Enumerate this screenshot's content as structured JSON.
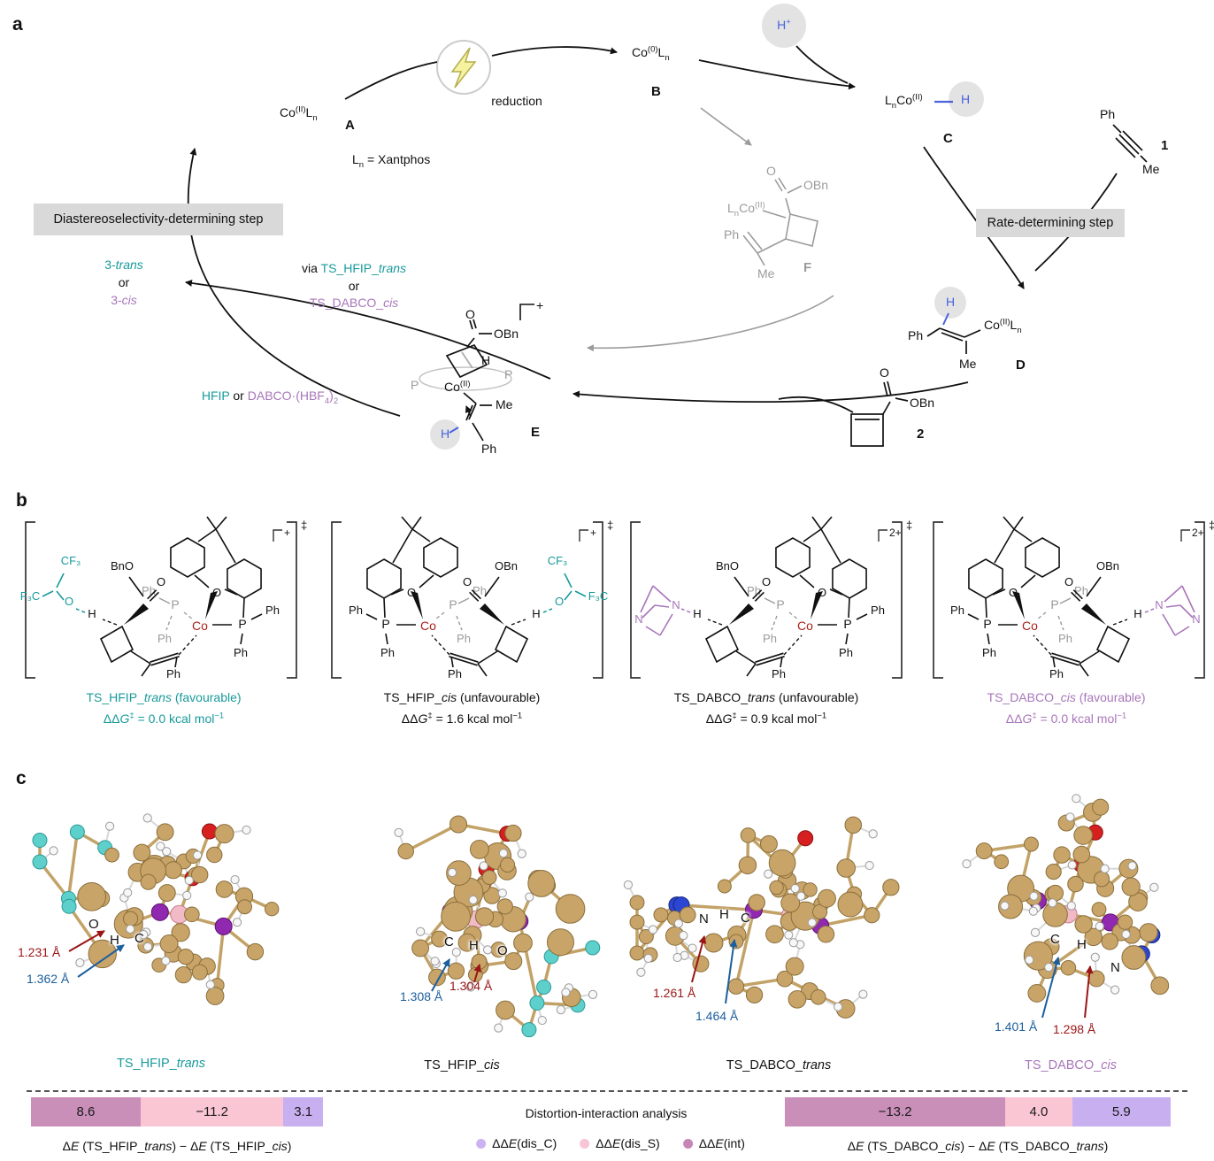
{
  "colors": {
    "teal": "#199a9b",
    "purple": "#a876ba",
    "blue_h": "#4a63e0",
    "dark_red_annotation": "#9a1515",
    "blue_annotation": "#1b5f9e",
    "co_red": "#a82019",
    "gray_structure": "#9b9b9b",
    "box_gray": "#d9d9d9",
    "bar_mauve": "#c98fb9",
    "bar_pink": "#fac6d4",
    "bar_lavender": "#c8aff0",
    "atom_carbon": "#c9a468",
    "atom_hydrogen": "#f7f7f7",
    "atom_oxygen": "#d62020",
    "atom_fluorine": "#5ed0cc",
    "atom_nitrogen": "#2c46d4",
    "atom_phosphorus": "#9028b0",
    "atom_cobalt": "#f2bac6"
  },
  "panel_a": {
    "label": "a",
    "species_a": "Co<sup>(II)</sup>L<sub>n</sub>",
    "tag_a": "A",
    "ligand_note": "L<sub>n</sub> = Xantphos",
    "reduction": "reduction",
    "species_b": "Co<sup>(0)</sup>L<sub>n</sub>",
    "tag_b": "B",
    "proton": "H<sup>+</sup>",
    "species_c": "L<sub>n</sub>Co<sup>(II)</sup>",
    "hydride": "H",
    "tag_c": "C",
    "diastereo_box": "Diastereoselectivity-determining step",
    "rate_box": "Rate-determining step",
    "product_trans": "3-<i>trans</i>",
    "product_or": "or",
    "product_cis": "3-<i>cis</i>",
    "via_prefix": "via ",
    "via_ts1": "TS_HFIP_<i>trans</i>",
    "via_or": "or",
    "via_ts2": "TS_DABCO_<i>cis</i>",
    "additive_hfip": "HFIP",
    "additive_or": " or ",
    "additive_dabco": "DABCO·(HBF<sub>4</sub>)<sub>2</sub>",
    "compound1": {
      "ph": "Ph",
      "me": "Me",
      "tag": "1"
    },
    "compound2": {
      "o": "O",
      "obn": "OBn",
      "tag": "2"
    },
    "species_d": {
      "ph": "Ph",
      "h": "H",
      "co": "Co<sup>(II)</sup>L<sub>n</sub>",
      "me": "Me",
      "tag": "D"
    },
    "species_e": {
      "charge": "+",
      "o": "O",
      "obn": "OBn",
      "h": "H",
      "p_left": "P",
      "p_right": "P",
      "co": "Co<sup>(II)</sup>",
      "me": "Me",
      "h_vinyl": "H",
      "ph": "Ph",
      "tag": "E"
    },
    "species_f": {
      "o": "O",
      "obn": "OBn",
      "co": "L<sub>n</sub>Co<sup>(II)</sup>",
      "ph": "Ph",
      "me": "Me",
      "tag": "F"
    }
  },
  "panel_b": {
    "label": "b",
    "ts": [
      {
        "caption": "TS_HFIP_<i>trans</i> (favourable)",
        "energy": "ΔΔ<i>G</i><sup>‡</sup> = 0.0 kcal mol<sup>−1</sup>",
        "charge": "+",
        "dagger": "‡",
        "donor": "hfip",
        "mirror": false,
        "accent": "#199a9b",
        "labels": {
          "bno": "BnO",
          "o": "O",
          "oxan": "O",
          "co": "Co",
          "p": "P",
          "pgray": "P",
          "ph": "Ph",
          "h": "H",
          "cf3": "CF₃",
          "f3c": "F₃C"
        }
      },
      {
        "caption": "TS_HFIP_<i>cis</i> (unfavourable)",
        "energy": "ΔΔ<i>G</i><sup>‡</sup> = 1.6 kcal mol<sup>−1</sup>",
        "charge": "+",
        "dagger": "‡",
        "donor": "hfip",
        "mirror": true,
        "accent": "#111111",
        "labels": {
          "bno": "OBn",
          "o": "O",
          "oxan": "O",
          "co": "Co",
          "p": "P",
          "pgray": "P",
          "ph": "Ph",
          "h": "H",
          "cf3": "CF₃",
          "f3c": "F₃C"
        }
      },
      {
        "caption": "TS_DABCO_<i>trans</i> (unfavourable)",
        "energy": "ΔΔ<i>G</i><sup>‡</sup> = 0.9 kcal mol<sup>−1</sup>",
        "charge": "2+",
        "dagger": "‡",
        "donor": "dabco",
        "mirror": false,
        "accent": "#111111",
        "labels": {
          "bno": "BnO",
          "o": "O",
          "oxan": "O",
          "co": "Co",
          "p": "P",
          "pgray": "P",
          "ph": "Ph",
          "h": "H",
          "n1": "N",
          "n2": "N"
        }
      },
      {
        "caption": "TS_DABCO_<i>cis</i> (favourable)",
        "energy": "ΔΔ<i>G</i><sup>‡</sup> = 0.0 kcal mol<sup>−1</sup>",
        "charge": "2+",
        "dagger": "‡",
        "donor": "dabco",
        "mirror": true,
        "accent": "#a876ba",
        "labels": {
          "bno": "OBn",
          "o": "O",
          "oxan": "O",
          "co": "Co",
          "p": "P",
          "pgray": "P",
          "ph": "Ph",
          "h": "H",
          "n1": "N",
          "n2": "N"
        }
      }
    ]
  },
  "panel_c": {
    "label": "c",
    "models": [
      {
        "caption": "TS_HFIP_<i>trans</i>",
        "atom_labels": [
          "O",
          "H",
          "C"
        ],
        "dist_red": "1.231 Å",
        "dist_blue": "1.362 Å"
      },
      {
        "caption": "TS_HFIP_<i>cis</i>",
        "atom_labels": [
          "C",
          "H",
          "O"
        ],
        "dist_blue": "1.308 Å",
        "dist_red": "1.304 Å"
      },
      {
        "caption": "TS_DABCO_<i>trans</i>",
        "atom_labels": [
          "N",
          "H",
          "C"
        ],
        "dist_red": "1.261 Å",
        "dist_blue": "1.464 Å"
      },
      {
        "caption": "TS_DABCO_<i>cis</i>",
        "atom_labels": [
          "C",
          "H",
          "N"
        ],
        "dist_blue": "1.401 Å",
        "dist_red": "1.298 Å"
      }
    ]
  },
  "chart_data": [
    {
      "type": "bar",
      "orientation": "horizontal-stacked",
      "title": "ΔE (TS_HFIP_trans) − ΔE (TS_HFIP_cis)",
      "segments": [
        {
          "name": "ΔΔE(int)",
          "value": 8.6,
          "display": "8.6",
          "color": "#c98fb9"
        },
        {
          "name": "ΔΔE(dis_S)",
          "value": -11.2,
          "display": "−11.2",
          "color": "#fac6d4"
        },
        {
          "name": "ΔΔE(dis_C)",
          "value": 3.1,
          "display": "3.1",
          "color": "#c8aff0"
        }
      ]
    },
    {
      "type": "bar",
      "orientation": "horizontal-stacked",
      "title": "ΔE (TS_DABCO_cis) − ΔE (TS_DABCO_trans)",
      "segments": [
        {
          "name": "ΔΔE(int)",
          "value": -13.2,
          "display": "−13.2",
          "color": "#c98fb9"
        },
        {
          "name": "ΔΔE(dis_S)",
          "value": 4.0,
          "display": "4.0",
          "color": "#fac6d4"
        },
        {
          "name": "ΔΔE(dis_C)",
          "value": 5.9,
          "display": "5.9",
          "color": "#c8aff0"
        }
      ]
    }
  ],
  "footer": {
    "analysis_title": "Distortion-interaction analysis",
    "legend": [
      {
        "label": "ΔΔ<i>E</i>(dis_C)",
        "color": "#cbb3f2"
      },
      {
        "label": "ΔΔ<i>E</i>(dis_S)",
        "color": "#f9c4d4"
      },
      {
        "label": "ΔΔ<i>E</i>(int)",
        "color": "#c886b6"
      }
    ],
    "left_caption": "Δ<i>E</i> (TS_HFIP_<i>trans</i>) − Δ<i>E</i> (TS_HFIP_<i>cis</i>)",
    "right_caption": "Δ<i>E</i> (TS_DABCO_<i>cis</i>) − Δ<i>E</i> (TS_DABCO_<i>trans</i>)"
  }
}
